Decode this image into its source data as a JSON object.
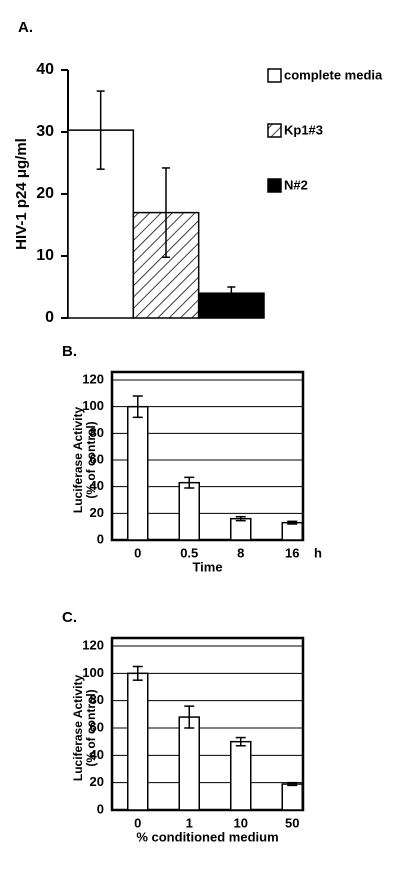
{
  "chart_data": [
    {
      "type": "bar",
      "title": "A.",
      "ylabel": "HIV-1 p24 μg/ml",
      "categories": [
        null
      ],
      "series": [
        {
          "name": "complete media",
          "color": "#ffffff",
          "values": [
            30.3
          ],
          "errors": [
            6.3
          ]
        },
        {
          "name": "Kp1#3",
          "color": "#ffffff",
          "pattern": "hatch",
          "values": [
            17
          ],
          "errors": [
            7.2
          ]
        },
        {
          "name": "N#2",
          "color": "#000000",
          "values": [
            4
          ],
          "errors": [
            1
          ]
        }
      ],
      "ylim": [
        0,
        40
      ],
      "yticks": [
        0,
        10,
        20,
        30,
        40
      ],
      "grid": false,
      "frame": false,
      "legend": "right"
    },
    {
      "type": "bar",
      "title": "B.",
      "ylabel": [
        "Luciferase Activity",
        "(% of control)"
      ],
      "xlabel": "Time",
      "x_unit": "h",
      "categories": [
        "0",
        "0.5",
        "8",
        "16"
      ],
      "series": [
        {
          "color": "#ffffff",
          "values": [
            100,
            43,
            16,
            13
          ],
          "errors": [
            8,
            4,
            1.5,
            1
          ]
        }
      ],
      "ylim": [
        0,
        120
      ],
      "yticks": [
        0,
        20,
        40,
        60,
        80,
        100,
        120
      ],
      "grid": true,
      "frame": true
    },
    {
      "type": "bar",
      "title": "C.",
      "ylabel": [
        "Luciferase Activity",
        "(% of control)"
      ],
      "xlabel": "% conditioned medium",
      "categories": [
        "0",
        "1",
        "10",
        "50"
      ],
      "series": [
        {
          "color": "#ffffff",
          "values": [
            100,
            68,
            50,
            19
          ],
          "errors": [
            5,
            8,
            3,
            1
          ]
        }
      ],
      "ylim": [
        0,
        120
      ],
      "yticks": [
        0,
        20,
        40,
        60,
        80,
        100,
        120
      ],
      "grid": true,
      "frame": true
    }
  ]
}
